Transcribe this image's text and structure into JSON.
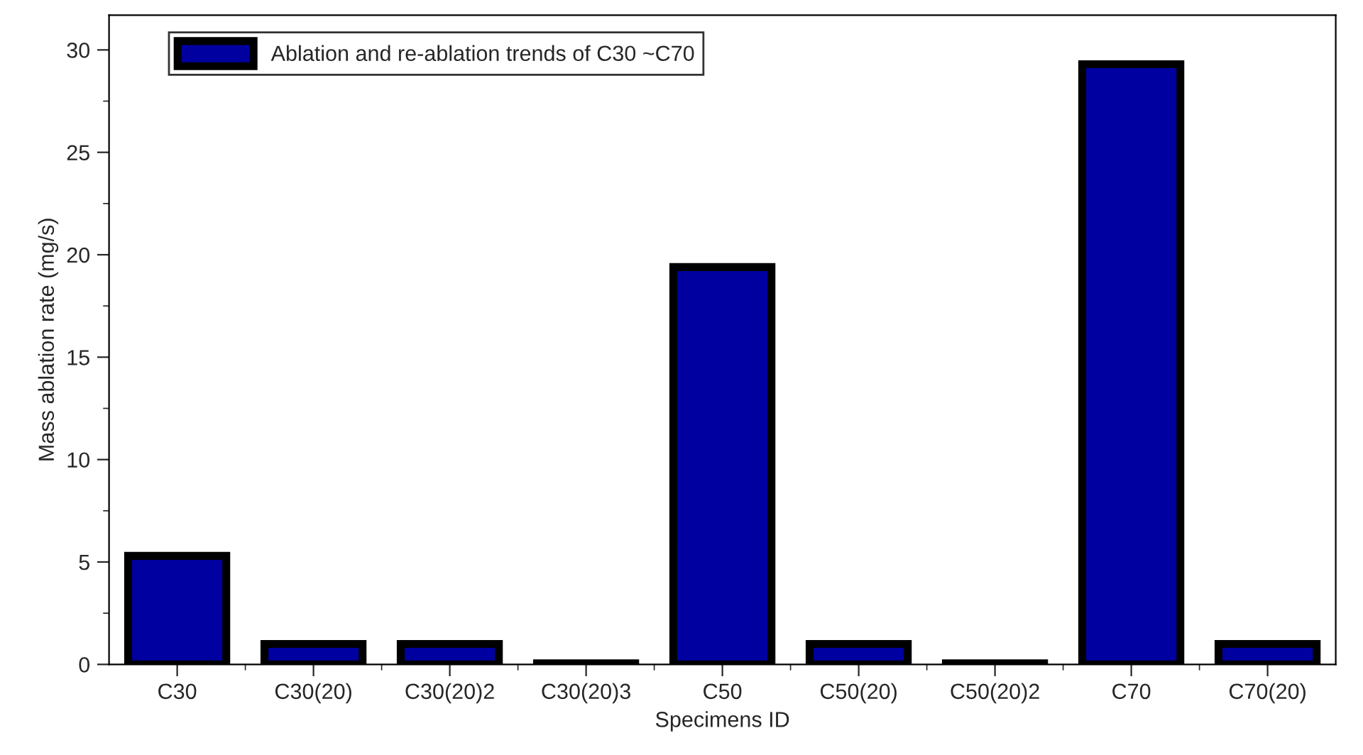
{
  "chart_data": {
    "type": "bar",
    "xlabel": "Specimens ID",
    "ylabel": "Mass ablation rate (mg/s)",
    "categories": [
      "C30",
      "C30(20)",
      "C30(20)2",
      "C30(20)3",
      "C50",
      "C50(20)",
      "C50(20)2",
      "C70",
      "C70(20)"
    ],
    "series": [
      {
        "name": "Ablation and re-ablation trends of C30 ~C70",
        "color": "#0000a0",
        "values": [
          5.3,
          1.0,
          1.0,
          0.05,
          19.4,
          1.0,
          0.05,
          29.3,
          1.0
        ]
      }
    ],
    "ylim": [
      0,
      31.7
    ],
    "yticks": [
      0,
      5,
      10,
      15,
      20,
      25,
      30
    ],
    "grid": false,
    "legend": "top left"
  }
}
